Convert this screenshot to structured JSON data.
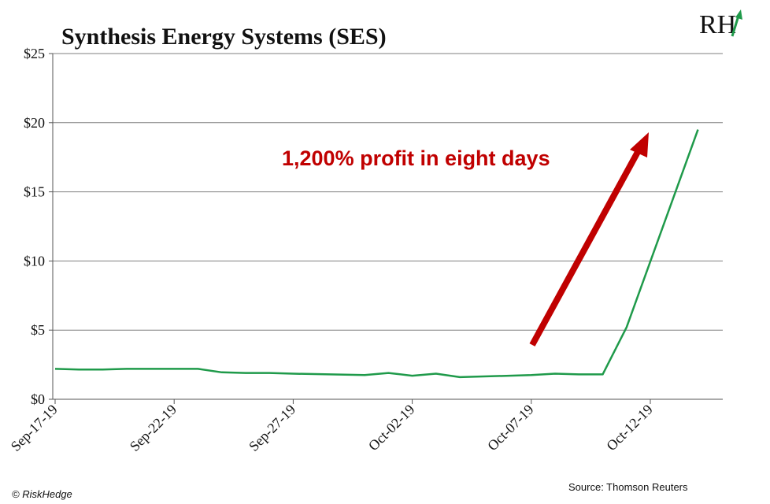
{
  "chart_data": {
    "type": "line",
    "title": "Synthesis Energy Systems (SES)",
    "xlabel": "",
    "ylabel": "",
    "x_ticks": [
      "Sep-17-19",
      "Sep-22-19",
      "Sep-27-19",
      "Oct-02-19",
      "Oct-07-19",
      "Oct-12-19"
    ],
    "ylim": [
      0,
      25
    ],
    "y_ticks": [
      "$0",
      "$5",
      "$10",
      "$15",
      "$20",
      "$25"
    ],
    "y_tick_values": [
      0,
      5,
      10,
      15,
      20,
      25
    ],
    "grid": true,
    "series": [
      {
        "color": "#1f9a4a",
        "points": [
          [
            "Sep-17-19",
            2.2
          ],
          [
            "Sep-18-19",
            2.15
          ],
          [
            "Sep-19-19",
            2.15
          ],
          [
            "Sep-20-19",
            2.2
          ],
          [
            "Sep-23-19",
            2.2
          ],
          [
            "Sep-24-19",
            1.95
          ],
          [
            "Sep-25-19",
            1.9
          ],
          [
            "Sep-26-19",
            1.9
          ],
          [
            "Sep-27-19",
            1.85
          ],
          [
            "Sep-30-19",
            1.75
          ],
          [
            "Oct-01-19",
            1.9
          ],
          [
            "Oct-02-19",
            1.7
          ],
          [
            "Oct-03-19",
            1.85
          ],
          [
            "Oct-04-19",
            1.6
          ],
          [
            "Oct-07-19",
            1.75
          ],
          [
            "Oct-08-19",
            1.85
          ],
          [
            "Oct-09-19",
            1.8
          ],
          [
            "Oct-10-19",
            1.8
          ],
          [
            "Oct-11-19",
            5.2
          ],
          [
            "Oct-14-19",
            19.5
          ]
        ]
      }
    ],
    "annotation": {
      "text": "1,200% profit in eight days",
      "color": "#c00000"
    }
  },
  "logo": {
    "text": "RH",
    "accent": "#1f9a4a"
  },
  "footer": {
    "copyright": "© RiskHedge",
    "source": "Source: Thomson Reuters"
  }
}
